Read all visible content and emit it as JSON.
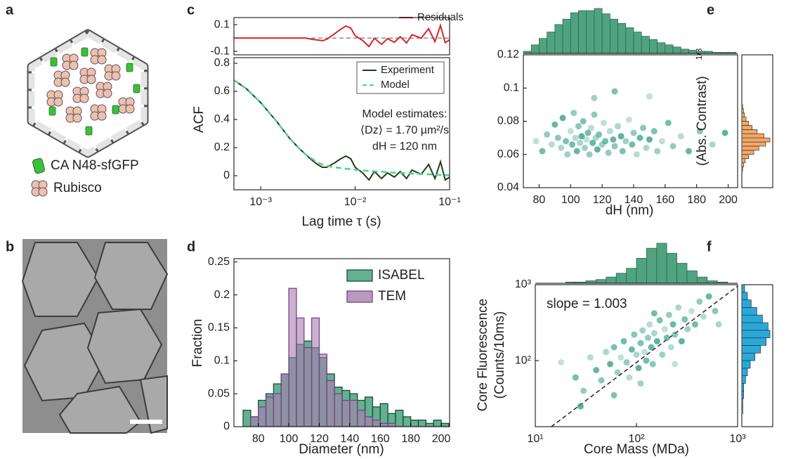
{
  "panel_labels": [
    "a",
    "b",
    "c",
    "d",
    "e",
    "f"
  ],
  "diagram": {
    "legend": [
      "CA N48-sfGFP",
      "Rubisco"
    ]
  },
  "chart_data": [
    {
      "type": "line",
      "xscale": "log",
      "xlim": [
        0.00052,
        0.1
      ],
      "ylim": [
        -0.126,
        0.153
      ],
      "yticks": [
        0.1,
        -0.1
      ],
      "reference_line": 0,
      "legend": "upper right",
      "x": [
        0.00052,
        0.0007,
        0.001,
        0.0015,
        0.002,
        0.0025,
        0.003,
        0.0035,
        0.004,
        0.0045,
        0.005,
        0.006,
        0.007,
        0.008,
        0.009,
        0.01,
        0.012,
        0.014,
        0.016,
        0.019,
        0.022,
        0.026,
        0.03,
        0.035,
        0.04,
        0.05,
        0.06,
        0.07,
        0.08,
        0.09,
        0.1
      ],
      "series": [
        {
          "name": "Residuals",
          "color": "#d62728",
          "values": [
            0,
            0,
            0,
            0,
            0,
            0,
            0,
            -0.01,
            -0.015,
            -0.02,
            -0.01,
            0.03,
            0.065,
            0.09,
            0.074,
            0.017,
            -0.018,
            -0.064,
            -0.001,
            -0.048,
            -0.005,
            -0.032,
            0.01,
            -0.037,
            0.025,
            -0.002,
            0.07,
            -0.028,
            0.094,
            -0.035,
            -0.014
          ]
        }
      ]
    },
    {
      "type": "line",
      "xscale": "log",
      "xlim": [
        0.00052,
        0.1
      ],
      "ylim": [
        -0.1,
        0.84
      ],
      "xticks": [
        {
          "value": 0.001,
          "label": "10⁻³"
        },
        {
          "value": 0.01,
          "label": "10⁻²"
        },
        {
          "value": 0.1,
          "label": "10⁻¹"
        }
      ],
      "yticks": [
        0,
        0.2,
        0.4,
        0.6,
        0.8
      ],
      "xlabel": "Lag time τ (s)",
      "ylabel": "ACF",
      "legend": "upper right",
      "annotations": [
        "Model estimates:",
        "⟨Dz⟩ = 1.70 µm²/s",
        "dH = 120 nm"
      ],
      "x": [
        0.00052,
        0.0007,
        0.001,
        0.0015,
        0.002,
        0.0025,
        0.003,
        0.0035,
        0.004,
        0.0045,
        0.005,
        0.006,
        0.007,
        0.008,
        0.009,
        0.01,
        0.012,
        0.014,
        0.016,
        0.019,
        0.022,
        0.026,
        0.03,
        0.035,
        0.04,
        0.05,
        0.06,
        0.07,
        0.08,
        0.09,
        0.1
      ],
      "series": [
        {
          "name": "Experiment",
          "color": "#1f3d1f",
          "dashed": false,
          "values": [
            0.68,
            0.62,
            0.52,
            0.38,
            0.27,
            0.2,
            0.15,
            0.11,
            0.08,
            0.06,
            0.06,
            0.09,
            0.12,
            0.14,
            0.12,
            0.06,
            0.02,
            -0.03,
            0.03,
            -0.02,
            0.02,
            -0.01,
            0.03,
            -0.02,
            0.04,
            0.01,
            0.08,
            -0.02,
            0.1,
            -0.03,
            -0.01
          ]
        },
        {
          "name": "Model",
          "color": "#4fcf8a",
          "dashed": true,
          "values": [
            0.68,
            0.62,
            0.52,
            0.38,
            0.27,
            0.2,
            0.15,
            0.12,
            0.095,
            0.08,
            0.07,
            0.06,
            0.055,
            0.05,
            0.046,
            0.043,
            0.038,
            0.034,
            0.031,
            0.028,
            0.025,
            0.022,
            0.02,
            0.017,
            0.015,
            0.012,
            0.01,
            0.008,
            0.006,
            0.005,
            0.004
          ]
        }
      ]
    },
    {
      "type": "histogram",
      "xlim": [
        64,
        205.5
      ],
      "ylim": [
        0,
        0.255
      ],
      "xticks": [
        80,
        100,
        120,
        140,
        160,
        180,
        200
      ],
      "yticks": [
        0,
        0.05,
        0.1,
        0.15,
        0.2,
        0.25
      ],
      "xlabel": "Diameter (nm)",
      "ylabel": "Fraction",
      "legend": "upper right",
      "bins": [
        70,
        75,
        80,
        85,
        90,
        95,
        100,
        105,
        110,
        115,
        120,
        125,
        130,
        135,
        140,
        145,
        150,
        155,
        160,
        165,
        170,
        175,
        180,
        185,
        190,
        195,
        200,
        205
      ],
      "series": [
        {
          "name": "ISABEL",
          "color": "#3d9c74",
          "edge": "#1a4d33",
          "values": [
            0.025,
            0.015,
            0.04,
            0.05,
            0.065,
            0.08,
            0.105,
            0.125,
            0.13,
            0.12,
            0.105,
            0.08,
            0.06,
            0.055,
            0.05,
            0.04,
            0.045,
            0.03,
            0.035,
            0.02,
            0.025,
            0.015,
            0.01,
            0.01,
            0.005,
            0.01,
            0.005
          ]
        },
        {
          "name": "TEM",
          "color": "#a77fae",
          "edge": "#7b3f8f",
          "values": [
            0,
            0.015,
            0.03,
            0.045,
            0.05,
            0.08,
            0.21,
            0.165,
            0.12,
            0.165,
            0.11,
            0.07,
            0.05,
            0.04,
            0.04,
            0.025,
            0.015,
            0.01,
            0.005,
            0.005,
            0,
            0,
            0,
            0,
            0,
            0,
            0
          ]
        }
      ]
    },
    {
      "type": "scatter",
      "xlim": [
        70,
        206
      ],
      "ylim": [
        0.04,
        0.12
      ],
      "color": "#2a9a7e",
      "xticks": [
        80,
        100,
        120,
        140,
        160,
        180,
        200
      ],
      "yticks": [
        0.04,
        0.06,
        0.08,
        0.1,
        0.12
      ],
      "xlabel": "dH (nm)",
      "ylabel": "(Abs. Contrast)",
      "ylabel_superscript": "1/3",
      "x": [
        78,
        82,
        85,
        88,
        90,
        92,
        94,
        95,
        97,
        98,
        100,
        101,
        102,
        103,
        104,
        105,
        106,
        107,
        108,
        109,
        110,
        111,
        112,
        113,
        114,
        115,
        116,
        117,
        118,
        120,
        121,
        122,
        124,
        125,
        127,
        128,
        130,
        132,
        133,
        135,
        137,
        139,
        140,
        142,
        144,
        146,
        148,
        150,
        153,
        155,
        158,
        162,
        165,
        170,
        175,
        182,
        190,
        198,
        128,
        115,
        150
      ],
      "y": [
        0.068,
        0.062,
        0.072,
        0.066,
        0.078,
        0.07,
        0.064,
        0.082,
        0.068,
        0.06,
        0.074,
        0.066,
        0.085,
        0.07,
        0.062,
        0.077,
        0.067,
        0.071,
        0.08,
        0.064,
        0.069,
        0.073,
        0.06,
        0.076,
        0.067,
        0.084,
        0.07,
        0.063,
        0.072,
        0.066,
        0.079,
        0.068,
        0.061,
        0.074,
        0.069,
        0.065,
        0.077,
        0.071,
        0.062,
        0.068,
        0.081,
        0.066,
        0.073,
        0.06,
        0.07,
        0.076,
        0.064,
        0.069,
        0.074,
        0.062,
        0.068,
        0.079,
        0.065,
        0.071,
        0.062,
        0.074,
        0.066,
        0.073,
        0.098,
        0.094,
        0.095
      ],
      "top_histogram": {
        "color": "#4fa381",
        "bins": [
          70,
          75,
          80,
          85,
          90,
          95,
          100,
          105,
          110,
          115,
          120,
          125,
          130,
          135,
          140,
          145,
          150,
          155,
          160,
          165,
          170,
          175,
          180,
          185,
          190,
          195,
          200,
          205
        ],
        "values": [
          2,
          8,
          14,
          20,
          27,
          32,
          38,
          40,
          40,
          42,
          37,
          32,
          28,
          24,
          20,
          16,
          13,
          10,
          8,
          6,
          4,
          3,
          2,
          2,
          1,
          1,
          1
        ]
      },
      "right_histogram": {
        "color": "#f4a766",
        "bins": [
          0.05,
          0.0525,
          0.055,
          0.0575,
          0.06,
          0.0625,
          0.065,
          0.0675,
          0.07,
          0.0725,
          0.075,
          0.0775,
          0.08,
          0.0825,
          0.085,
          0.0875,
          0.09
        ],
        "values": [
          1,
          2,
          4,
          8,
          14,
          20,
          28,
          33,
          26,
          18,
          12,
          8,
          5,
          3,
          2,
          1
        ]
      }
    },
    {
      "type": "scatter",
      "xscale": "log",
      "yscale": "log",
      "xlim": [
        10,
        1000
      ],
      "ylim": [
        13.5,
        1000
      ],
      "color": "#2a9a7e",
      "xticks": [
        {
          "value": 10,
          "label": "10¹"
        },
        {
          "value": 100,
          "label": "10²"
        },
        {
          "value": 1000,
          "label": "10³"
        }
      ],
      "yticks": [
        {
          "value": 100,
          "label": "10²"
        },
        {
          "value": 1000,
          "label": "10³"
        }
      ],
      "xlabel": "Core Mass (MDa)",
      "ylabel": [
        "Core Fluorescence",
        "(Counts/10ms)"
      ],
      "annotations": [
        "slope = 1.003"
      ],
      "fit_line": {
        "x": [
          14.4,
          1000
        ],
        "y": [
          13.5,
          955
        ]
      },
      "x": [
        18,
        25,
        30,
        35,
        40,
        45,
        50,
        55,
        60,
        65,
        70,
        75,
        80,
        85,
        90,
        95,
        100,
        105,
        110,
        115,
        120,
        125,
        130,
        135,
        140,
        145,
        150,
        160,
        170,
        180,
        190,
        200,
        210,
        220,
        230,
        240,
        260,
        280,
        300,
        320,
        350,
        380,
        420,
        460,
        520,
        600,
        650,
        28,
        60,
        110,
        240,
        150
      ],
      "y": [
        95,
        60,
        40,
        110,
        75,
        55,
        130,
        90,
        150,
        70,
        110,
        180,
        95,
        60,
        140,
        220,
        120,
        80,
        170,
        250,
        130,
        100,
        200,
        300,
        150,
        90,
        230,
        180,
        340,
        120,
        260,
        200,
        400,
        150,
        300,
        220,
        500,
        180,
        350,
        260,
        450,
        300,
        600,
        380,
        700,
        450,
        300,
        25,
        35,
        50,
        90,
        420
      ],
      "top_histogram": {
        "color": "#4fa381",
        "bins": [
          20,
          25.1,
          31.6,
          39.8,
          50.1,
          63.1,
          79.4,
          100,
          125.9,
          158.5,
          199.5,
          251.2,
          316.2,
          398.1,
          501.2,
          631,
          794.3
        ],
        "values": [
          1,
          1,
          2,
          3,
          5,
          8,
          12,
          20,
          28,
          32,
          24,
          16,
          10,
          5,
          2,
          1
        ]
      },
      "right_histogram": {
        "color": "#2aa7d9",
        "bins": [
          20,
          25.1,
          31.6,
          39.8,
          50.1,
          63.1,
          79.4,
          100,
          125.9,
          158.5,
          199.5,
          251.2,
          316.2,
          398.1,
          501.2,
          631,
          794.3,
          1000
        ],
        "values": [
          1,
          1,
          2,
          2,
          4,
          6,
          9,
          14,
          20,
          26,
          30,
          28,
          22,
          16,
          10,
          6,
          3
        ]
      }
    }
  ]
}
